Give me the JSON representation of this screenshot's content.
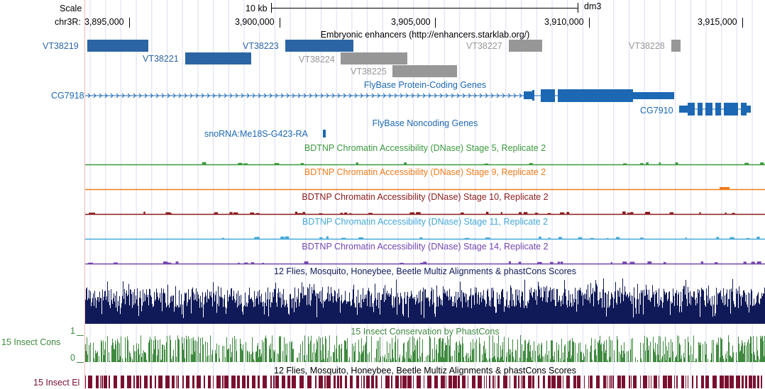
{
  "browser": {
    "scale_label": "Scale",
    "scale_bar_label": "10 kb",
    "assembly": "dm3",
    "chrom_prefix": "chr3R:",
    "ruler_ticks": [
      "3,895,000",
      "3,900,000",
      "3,905,000",
      "3,910,000",
      "3,915,000"
    ]
  },
  "colors": {
    "enhancer_blue": "#2c65a4",
    "enhancer_gray": "#979797",
    "gene_blue": "#1c68b4",
    "stage5": "#3a9a3a",
    "stage9": "#f07b1a",
    "stage10": "#8b1a1a",
    "stage11": "#44a8d8",
    "stage14": "#7446b0",
    "multiz": "#101a58",
    "cons": "#3f8a3f",
    "elements": "#7a1030",
    "grid": "#dcdcf4",
    "highlight": "#ffb0b0"
  },
  "tracks": {
    "enhancers": {
      "title": "Embryonic enhancers (http://enhancers.starklab.org/)",
      "features": [
        "VT38219",
        "VT38221",
        "VT38223",
        "VT38224",
        "VT38225",
        "VT38227",
        "VT38228"
      ]
    },
    "fb_coding": {
      "title": "FlyBase Protein-Coding Genes",
      "genes": [
        "CG7918",
        "CG7910"
      ]
    },
    "fb_noncoding": {
      "title": "FlyBase Noncoding Genes",
      "genes": [
        "snoRNA:Me18S-G423-RA"
      ]
    },
    "dnase_stage5": {
      "title": "BDTNP Chromatin Accessibility (DNase) Stage 5, Replicate 2"
    },
    "dnase_stage9": {
      "title": "BDTNP Chromatin Accessibility (DNase) Stage 9, Replicate 2"
    },
    "dnase_stage10": {
      "title": "BDTNP Chromatin Accessibility (DNase) Stage 10, Replicate 2"
    },
    "dnase_stage11": {
      "title": "BDTNP Chromatin Accessibility (DNase) Stage 11, Replicate 2"
    },
    "dnase_stage14": {
      "title": "BDTNP Chromatin Accessibility (DNase) Stage 14, Replicate 2"
    },
    "multiz": {
      "title": "12 Flies, Mosquito, Honeybee, Beetle Multiz Alignments & phastCons Scores"
    },
    "phastcons": {
      "title": "15 Insect Conservation by PhastCons",
      "side_label": "15 Insect Cons",
      "y_max": "1",
      "y_min": "0"
    },
    "elements": {
      "title": "12 Flies, Mosquito, Honeybee, Beetle Multiz Alignments & phastCons Scores",
      "side_label": "15 Insect El"
    }
  }
}
